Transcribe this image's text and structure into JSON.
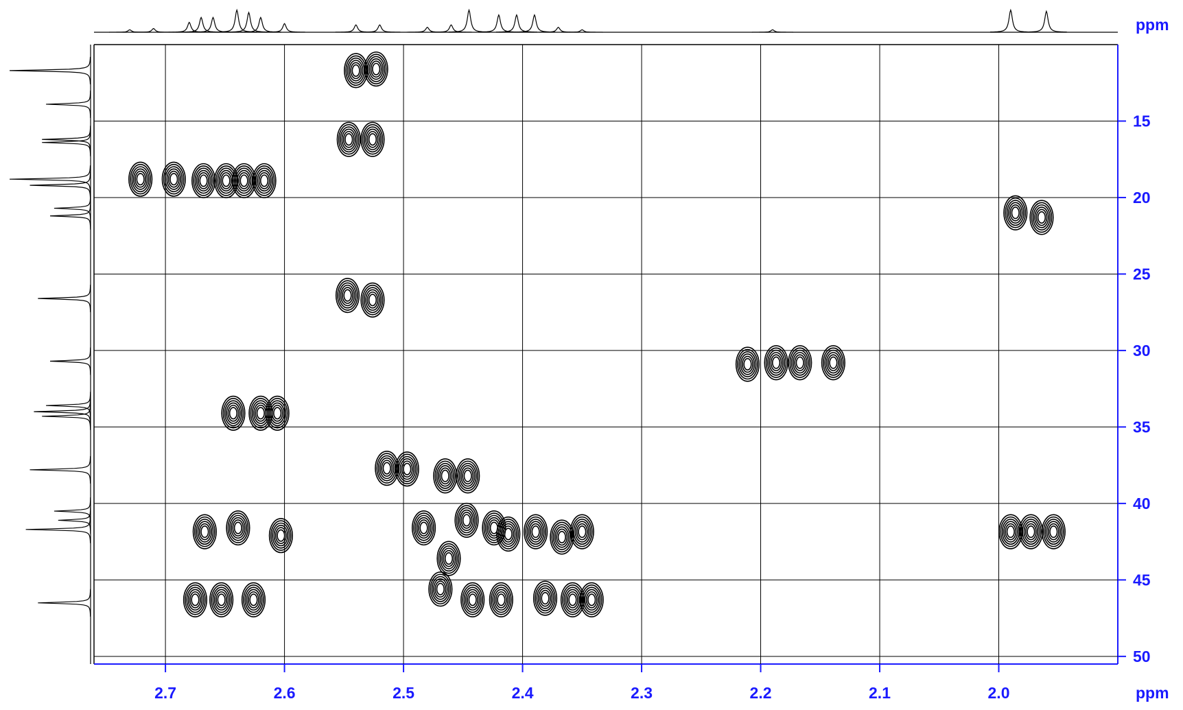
{
  "chart_data": {
    "type": "contour",
    "xlabel": "ppm",
    "ylabel": "ppm",
    "xlim": [
      2.76,
      1.9
    ],
    "ylim": [
      10,
      50.5
    ],
    "xticks": [
      2.7,
      2.6,
      2.5,
      2.4,
      2.3,
      2.2,
      2.1,
      {
        "value": 2,
        "label": "2.0"
      }
    ],
    "yticks": [
      15,
      20,
      25,
      30,
      35,
      40,
      45,
      50
    ],
    "grid": true,
    "axis_color": "#1a1aff",
    "color": "#000000",
    "x": [
      2.54,
      2.523,
      2.546,
      2.526,
      2.721,
      2.693,
      2.668,
      2.649,
      2.634,
      2.617,
      1.986,
      1.964,
      2.547,
      2.526,
      2.211,
      2.187,
      2.167,
      2.139,
      2.643,
      2.62,
      2.606,
      2.514,
      2.497,
      2.465,
      2.446,
      2.667,
      2.639,
      2.603,
      2.483,
      2.447,
      2.424,
      2.412,
      2.389,
      2.367,
      2.35,
      1.99,
      1.973,
      1.954,
      2.462,
      2.675,
      2.653,
      2.626,
      2.469,
      2.442,
      2.418,
      2.381,
      2.358,
      2.342
    ],
    "y": [
      11.7,
      11.6,
      16.2,
      16.2,
      18.8,
      18.8,
      18.9,
      18.9,
      18.9,
      18.9,
      21.0,
      21.3,
      26.4,
      26.7,
      30.9,
      30.8,
      30.8,
      30.8,
      34.1,
      34.1,
      34.1,
      37.7,
      37.75,
      38.2,
      38.2,
      41.85,
      41.6,
      42.1,
      41.6,
      41.1,
      41.6,
      42.0,
      41.85,
      42.2,
      41.85,
      41.85,
      41.85,
      41.85,
      43.6,
      46.3,
      46.3,
      46.3,
      45.6,
      46.3,
      46.3,
      46.2,
      46.3,
      46.3
    ],
    "top_projection": {
      "x": [
        2.73,
        2.71,
        2.68,
        2.67,
        2.66,
        2.64,
        2.63,
        2.62,
        2.6,
        2.54,
        2.52,
        2.48,
        2.46,
        2.445,
        2.42,
        2.405,
        2.39,
        2.37,
        2.35,
        2.19,
        1.99,
        1.96
      ],
      "values": [
        0.1,
        0.15,
        0.4,
        0.6,
        0.6,
        0.9,
        0.8,
        0.6,
        0.35,
        0.3,
        0.3,
        0.2,
        0.3,
        0.9,
        0.7,
        0.7,
        0.7,
        0.2,
        0.1,
        0.1,
        0.9,
        0.85
      ]
    },
    "left_projection": {
      "y": [
        11.7,
        13.9,
        16.2,
        16.4,
        18.8,
        19.2,
        20.7,
        21.2,
        26.6,
        30.7,
        33.6,
        34.0,
        34.3,
        37.8,
        40.5,
        41.1,
        41.7,
        46.5
      ],
      "values": [
        1.0,
        0.55,
        0.6,
        0.6,
        1.0,
        0.75,
        0.45,
        0.5,
        0.65,
        0.5,
        0.55,
        0.7,
        0.6,
        0.75,
        0.45,
        0.4,
        0.8,
        0.65
      ]
    }
  }
}
